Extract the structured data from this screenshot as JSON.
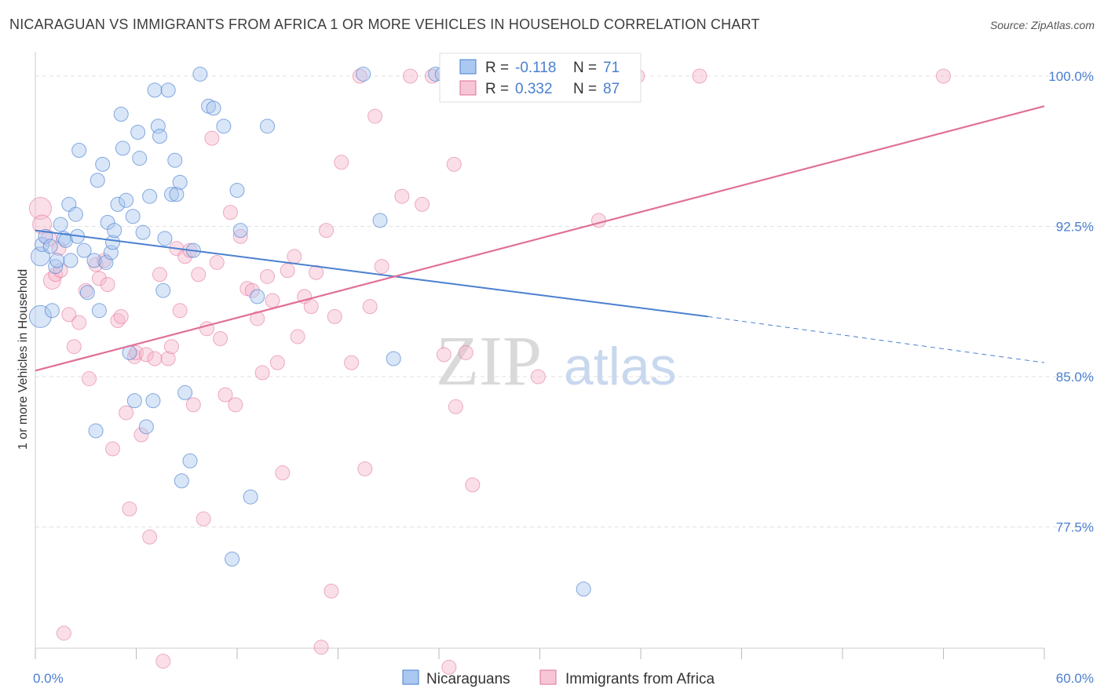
{
  "title": "NICARAGUAN VS IMMIGRANTS FROM AFRICA 1 OR MORE VEHICLES IN HOUSEHOLD CORRELATION CHART",
  "source": "Source: ZipAtlas.com",
  "watermark": {
    "zip": "ZIP",
    "atlas": "atlas"
  },
  "colors": {
    "blue": "#4a7fd0",
    "pink": "#e07098",
    "blue_fill": "#aac8f0",
    "pink_fill": "#f6b8cc",
    "grid": "#e2e2e2"
  },
  "legend": {
    "r_label": "R =",
    "n_label": "N =",
    "rows": [
      {
        "r_value": "-0.118",
        "n_value": "71"
      },
      {
        "r_value": "0.332",
        "n_value": "87"
      }
    ]
  },
  "bottom_legend": [
    "Nicaraguans",
    "Immigrants from Africa"
  ],
  "chart_data": {
    "type": "scatter",
    "title": "NICARAGUAN VS IMMIGRANTS FROM AFRICA 1 OR MORE VEHICLES IN HOUSEHOLD CORRELATION CHART",
    "xlabel": "",
    "ylabel": "1 or more Vehicles in Household",
    "xlim": [
      0,
      60
    ],
    "ylim": [
      70.5,
      101.5
    ],
    "x_tick_labels": [
      "0.0%",
      "60.0%"
    ],
    "y_ticks": [
      77.5,
      85.0,
      92.5,
      100.0
    ],
    "y_tick_labels": [
      "77.5%",
      "85.0%",
      "92.5%",
      "100.0%"
    ],
    "series": [
      {
        "name": "Nicaraguans",
        "color": "#4a7fd0",
        "r": -0.118,
        "n": 71,
        "trend": {
          "x0": 0,
          "y0": 92.3,
          "x1": 40,
          "y1": 88.0,
          "dashed_to_x": 60,
          "dashed_to_y": 85.7
        },
        "points": [
          [
            0.3,
            88.0,
            14
          ],
          [
            0.3,
            91.0,
            12
          ],
          [
            0.4,
            91.6,
            9
          ],
          [
            0.6,
            92.0,
            9
          ],
          [
            0.9,
            91.5,
            9
          ],
          [
            1.0,
            88.3,
            9
          ],
          [
            1.2,
            90.5,
            9
          ],
          [
            1.3,
            90.8,
            9
          ],
          [
            1.5,
            92.6,
            9
          ],
          [
            1.7,
            91.9,
            9
          ],
          [
            1.8,
            91.8,
            9
          ],
          [
            2.0,
            93.6,
            9
          ],
          [
            2.1,
            90.8,
            9
          ],
          [
            2.4,
            93.1,
            9
          ],
          [
            2.5,
            92.0,
            9
          ],
          [
            2.6,
            96.3,
            9
          ],
          [
            2.9,
            91.3,
            9
          ],
          [
            3.1,
            89.2,
            9
          ],
          [
            3.5,
            90.8,
            9
          ],
          [
            3.6,
            82.3,
            9
          ],
          [
            3.7,
            94.8,
            9
          ],
          [
            3.8,
            88.3,
            9
          ],
          [
            4.0,
            95.6,
            9
          ],
          [
            4.2,
            90.7,
            9
          ],
          [
            4.3,
            92.7,
            9
          ],
          [
            4.5,
            91.2,
            9
          ],
          [
            4.6,
            91.7,
            9
          ],
          [
            4.7,
            92.3,
            9
          ],
          [
            4.9,
            93.6,
            9
          ],
          [
            5.1,
            98.1,
            9
          ],
          [
            5.2,
            96.4,
            9
          ],
          [
            5.4,
            93.8,
            9
          ],
          [
            5.6,
            86.2,
            9
          ],
          [
            5.8,
            93.0,
            9
          ],
          [
            5.9,
            83.8,
            9
          ],
          [
            6.1,
            97.2,
            9
          ],
          [
            6.2,
            95.9,
            9
          ],
          [
            6.4,
            92.2,
            9
          ],
          [
            6.6,
            82.5,
            9
          ],
          [
            6.8,
            94.0,
            9
          ],
          [
            7.0,
            83.8,
            9
          ],
          [
            7.1,
            99.3,
            9
          ],
          [
            7.3,
            97.5,
            9
          ],
          [
            7.4,
            97.0,
            9
          ],
          [
            7.6,
            89.3,
            9
          ],
          [
            7.7,
            91.9,
            9
          ],
          [
            7.9,
            99.3,
            9
          ],
          [
            8.1,
            94.1,
            9
          ],
          [
            8.3,
            95.8,
            9
          ],
          [
            8.4,
            94.1,
            9
          ],
          [
            8.6,
            94.7,
            9
          ],
          [
            8.7,
            79.8,
            9
          ],
          [
            8.9,
            84.2,
            9
          ],
          [
            9.2,
            80.8,
            9
          ],
          [
            9.4,
            91.3,
            9
          ],
          [
            9.8,
            100.1,
            9
          ],
          [
            10.3,
            98.5,
            9
          ],
          [
            10.6,
            98.4,
            9
          ],
          [
            11.2,
            97.5,
            9
          ],
          [
            11.7,
            75.9,
            9
          ],
          [
            12.0,
            94.3,
            9
          ],
          [
            12.2,
            92.3,
            9
          ],
          [
            12.8,
            79.0,
            9
          ],
          [
            13.2,
            89.0,
            9
          ],
          [
            13.8,
            97.5,
            9
          ],
          [
            19.5,
            100.1,
            9
          ],
          [
            20.5,
            92.8,
            9
          ],
          [
            21.3,
            85.9,
            9
          ],
          [
            23.8,
            100.1,
            9
          ],
          [
            24.2,
            100.1,
            9
          ],
          [
            32.6,
            74.4,
            9
          ]
        ]
      },
      {
        "name": "Immigrants from Africa",
        "color": "#e07098",
        "r": 0.332,
        "n": 87,
        "trend": {
          "x0": 0,
          "y0": 85.3,
          "x1": 60,
          "y1": 98.5
        },
        "points": [
          [
            0.3,
            93.4,
            14
          ],
          [
            0.4,
            92.6,
            12
          ],
          [
            0.8,
            91.9,
            10
          ],
          [
            1.0,
            89.8,
            11
          ],
          [
            1.2,
            90.1,
            9
          ],
          [
            1.4,
            91.4,
            9
          ],
          [
            1.5,
            90.3,
            9
          ],
          [
            1.7,
            72.2,
            9
          ],
          [
            2.0,
            88.1,
            9
          ],
          [
            2.3,
            86.5,
            9
          ],
          [
            2.6,
            87.7,
            9
          ],
          [
            3.0,
            89.3,
            9
          ],
          [
            3.2,
            84.9,
            9
          ],
          [
            3.6,
            90.6,
            9
          ],
          [
            3.8,
            89.9,
            9
          ],
          [
            4.1,
            90.8,
            9
          ],
          [
            4.3,
            89.6,
            9
          ],
          [
            4.6,
            81.4,
            9
          ],
          [
            4.9,
            87.8,
            9
          ],
          [
            5.1,
            88.0,
            9
          ],
          [
            5.4,
            83.2,
            9
          ],
          [
            5.6,
            78.4,
            9
          ],
          [
            5.9,
            86.0,
            9
          ],
          [
            6.0,
            86.2,
            9
          ],
          [
            6.3,
            82.1,
            9
          ],
          [
            6.6,
            86.1,
            9
          ],
          [
            6.8,
            77.0,
            9
          ],
          [
            7.1,
            85.9,
            9
          ],
          [
            7.4,
            90.1,
            9
          ],
          [
            7.6,
            70.8,
            9
          ],
          [
            7.9,
            85.9,
            9
          ],
          [
            8.1,
            86.5,
            9
          ],
          [
            8.4,
            91.4,
            9
          ],
          [
            8.6,
            88.3,
            9
          ],
          [
            8.9,
            91.0,
            9
          ],
          [
            9.2,
            91.3,
            9
          ],
          [
            9.4,
            83.6,
            9
          ],
          [
            9.7,
            90.1,
            9
          ],
          [
            10.0,
            77.9,
            9
          ],
          [
            10.2,
            87.4,
            9
          ],
          [
            10.5,
            96.9,
            9
          ],
          [
            10.8,
            90.7,
            9
          ],
          [
            11.0,
            86.9,
            9
          ],
          [
            11.3,
            84.1,
            9
          ],
          [
            11.6,
            93.2,
            9
          ],
          [
            11.9,
            83.6,
            9
          ],
          [
            12.2,
            92.0,
            9
          ],
          [
            12.6,
            89.4,
            9
          ],
          [
            12.9,
            89.3,
            9
          ],
          [
            13.2,
            87.9,
            9
          ],
          [
            13.5,
            85.2,
            9
          ],
          [
            13.8,
            90.0,
            9
          ],
          [
            14.1,
            88.8,
            9
          ],
          [
            14.4,
            85.7,
            9
          ],
          [
            14.7,
            80.2,
            9
          ],
          [
            15.0,
            90.3,
            9
          ],
          [
            15.4,
            91.0,
            9
          ],
          [
            15.6,
            87.0,
            9
          ],
          [
            16.0,
            89.0,
            9
          ],
          [
            16.4,
            88.5,
            9
          ],
          [
            16.7,
            90.2,
            9
          ],
          [
            17.0,
            71.5,
            9
          ],
          [
            17.3,
            92.3,
            9
          ],
          [
            17.6,
            74.3,
            9
          ],
          [
            17.8,
            88.0,
            9
          ],
          [
            18.2,
            95.7,
            9
          ],
          [
            18.8,
            85.7,
            9
          ],
          [
            19.3,
            100.0,
            9
          ],
          [
            19.6,
            80.4,
            9
          ],
          [
            19.9,
            88.5,
            9
          ],
          [
            20.2,
            98.0,
            9
          ],
          [
            20.6,
            90.5,
            9
          ],
          [
            21.8,
            94.0,
            9
          ],
          [
            22.3,
            100.0,
            9
          ],
          [
            23.0,
            93.6,
            9
          ],
          [
            23.6,
            100.0,
            9
          ],
          [
            24.3,
            86.1,
            9
          ],
          [
            24.6,
            70.5,
            9
          ],
          [
            24.9,
            95.6,
            9
          ],
          [
            25.0,
            83.5,
            9
          ],
          [
            25.6,
            86.2,
            9
          ],
          [
            26.0,
            79.6,
            9
          ],
          [
            29.9,
            85.0,
            9
          ],
          [
            33.5,
            92.8,
            9
          ],
          [
            35.8,
            100.0,
            9
          ],
          [
            39.5,
            100.0,
            9
          ],
          [
            54.0,
            100.0,
            9
          ]
        ]
      }
    ]
  }
}
